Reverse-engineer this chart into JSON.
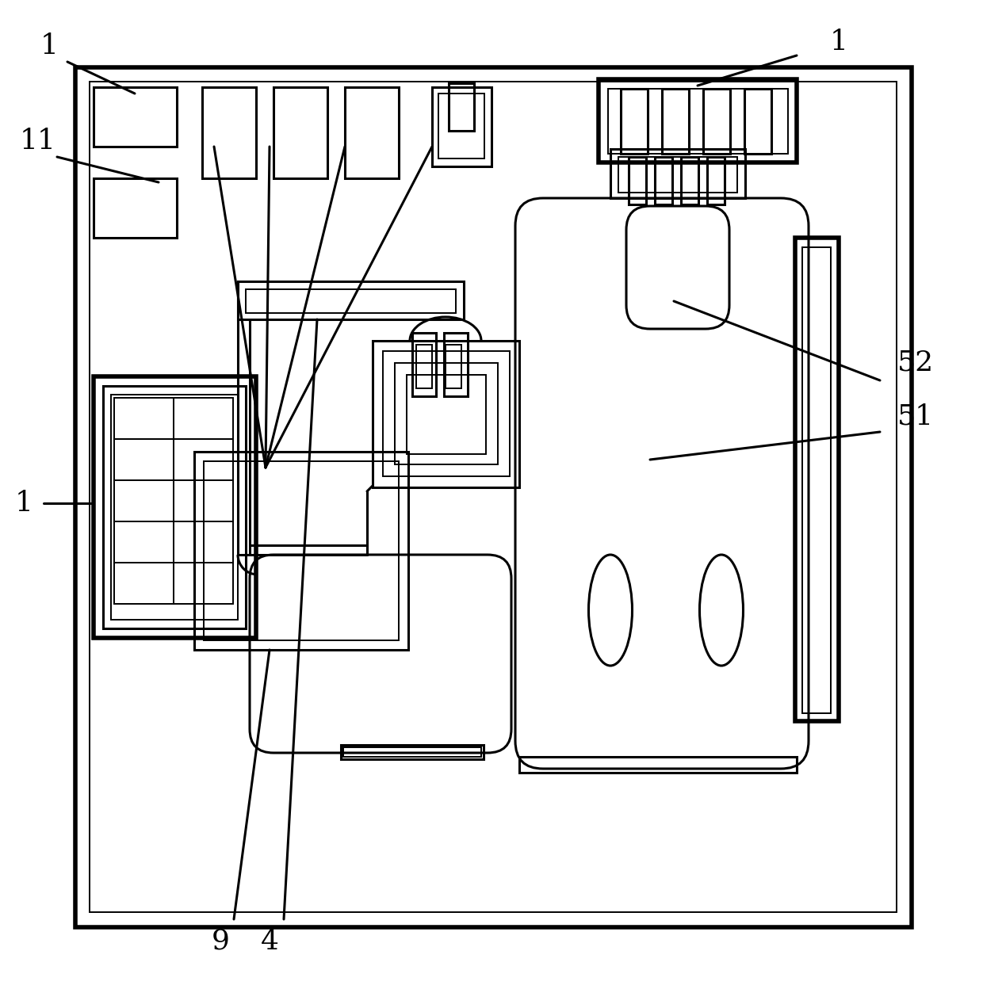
{
  "bg": "#ffffff",
  "lc": "#000000",
  "lw": 2.2,
  "tlw": 1.4,
  "thk": 4.0,
  "fig_w": 12.4,
  "fig_h": 12.48,
  "dpi": 100
}
